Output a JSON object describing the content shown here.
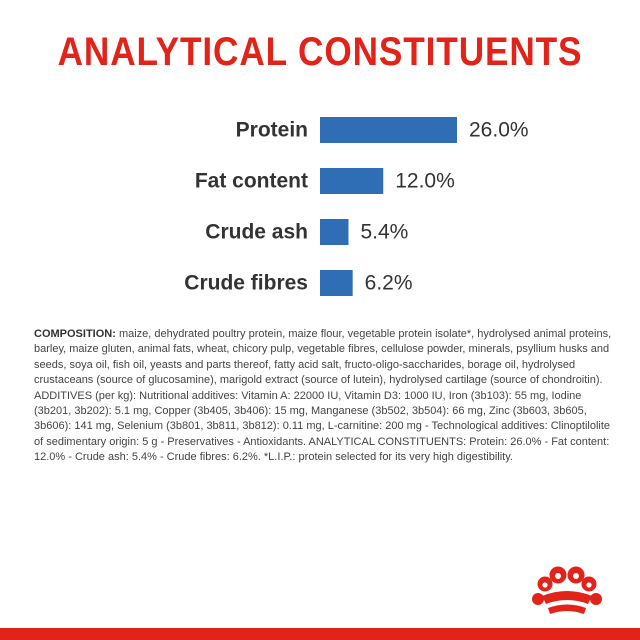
{
  "title": "ANALYTICAL CONSTITUENTS",
  "colors": {
    "accent": "#e2231a",
    "bar": "#2f6db5",
    "label": "#333333",
    "text": "#444444"
  },
  "chart_data": {
    "type": "bar",
    "orientation": "horizontal",
    "title": "ANALYTICAL CONSTITUENTS",
    "categories": [
      "Protein",
      "Fat content",
      "Crude ash",
      "Crude fibres"
    ],
    "values": [
      26.0,
      12.0,
      5.4,
      6.2
    ],
    "value_labels": [
      "26.0%",
      "12.0%",
      "5.4%",
      "6.2%"
    ],
    "unit": "%",
    "xlabel": "",
    "ylabel": "",
    "grid": false,
    "legend": "none"
  },
  "composition": {
    "label": "COMPOSITION:",
    "text": " maize, dehydrated poultry protein, maize flour, vegetable protein isolate*, hydrolysed animal proteins, barley, maize gluten, animal fats, wheat, chicory pulp, vegetable fibres, cellulose powder, minerals, psyllium husks and seeds, soya oil, fish oil, yeasts and parts thereof, fatty acid salt, fructo-oligo-saccharides, borage oil, hydrolysed crustaceans (source of glucosamine), marigold extract (source of lutein), hydrolysed cartilage (source of chondroitin). ADDITIVES (per kg): Nutritional additives: Vitamin A: 22000 IU, Vitamin D3: 1000 IU, Iron (3b103): 55 mg, Iodine (3b201, 3b202): 5.1 mg, Copper (3b405, 3b406): 15 mg, Manganese (3b502, 3b504): 66 mg, Zinc (3b603, 3b605, 3b606): 141 mg, Selenium (3b801, 3b811, 3b812): 0.11 mg, L-carnitine: 200 mg - Technological additives: Clinoptilolite of sedimentary origin: 5 g - Preservatives - Antioxidants. ANALYTICAL CONSTITUENTS: Protein: 26.0% - Fat content: 12.0% - Crude ash: 5.4% - Crude fibres: 6.2%. *L.I.P.: protein selected for its very high digestibility."
  },
  "logo": {
    "icon": "royal-crown-icon"
  }
}
